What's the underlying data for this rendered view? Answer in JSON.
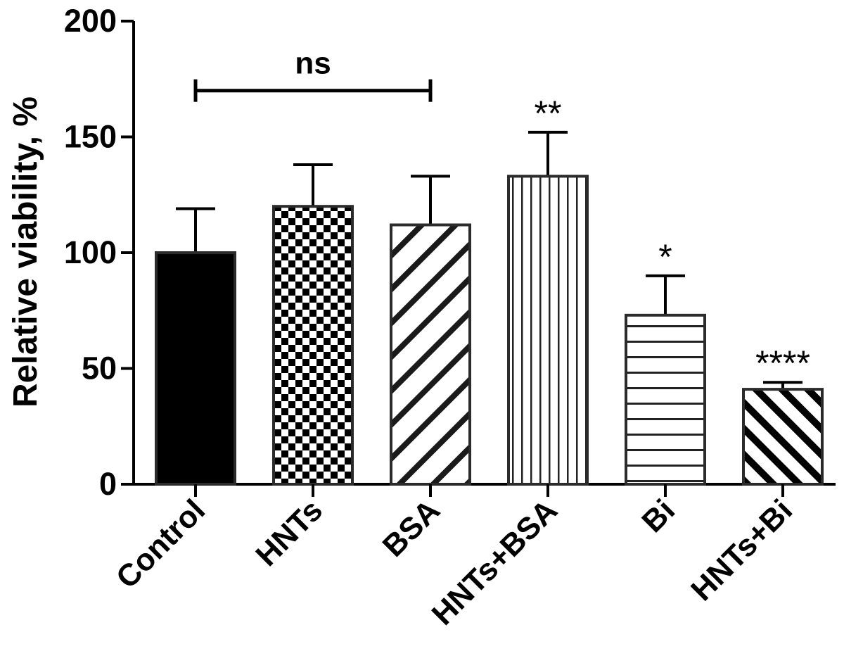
{
  "chart_data": {
    "type": "bar",
    "ylabel": "Relative viability, %",
    "ylim": [
      0,
      200
    ],
    "yticks": [
      0,
      50,
      100,
      150,
      200
    ],
    "categories": [
      "Control",
      "HNTs",
      "BSA",
      "HNTs+BSA",
      "Bi",
      "HNTs+Bi"
    ],
    "values": [
      100,
      120,
      112,
      133,
      73,
      41
    ],
    "error": [
      19,
      18,
      21,
      19,
      17,
      3
    ],
    "significance": [
      "",
      "",
      "",
      "**",
      "*",
      "****"
    ],
    "fill_patterns": [
      "solid",
      "checkerboard",
      "diagonal",
      "vertical",
      "horizontal",
      "diagonal-wide"
    ],
    "bracket": {
      "from": "Control",
      "to": "BSA",
      "label": "ns",
      "value": 170
    },
    "colors": {
      "bar_outline": "#2b2b2b",
      "ink": "#000000"
    }
  }
}
